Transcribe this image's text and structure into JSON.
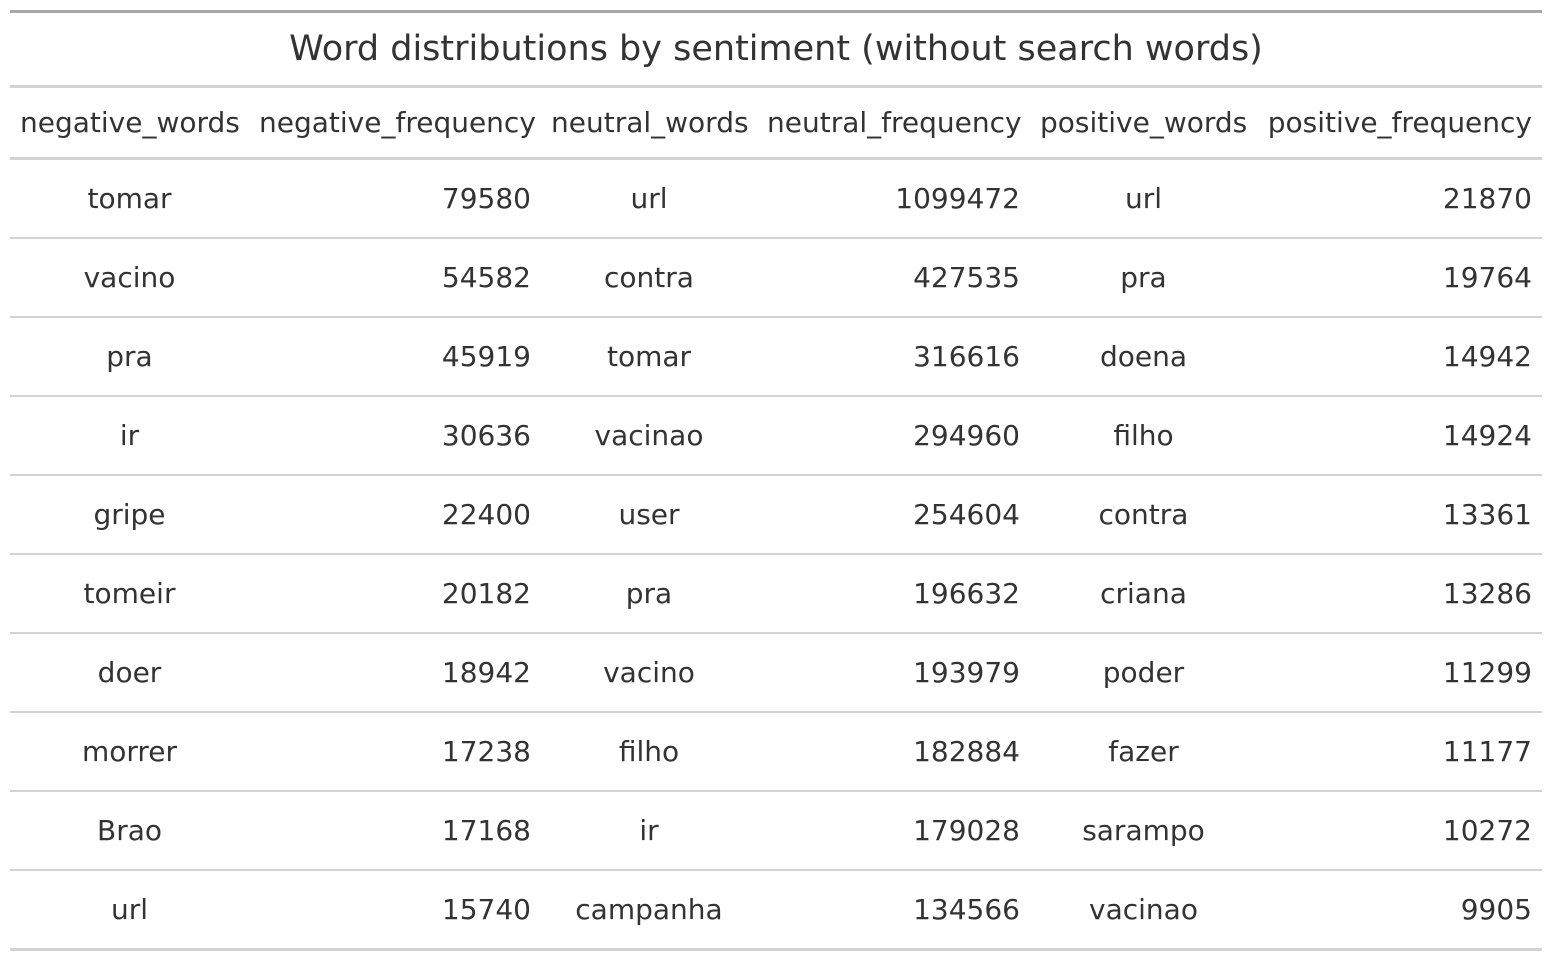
{
  "chart_data": {
    "type": "table",
    "title": "Word distributions by sentiment (without search words)",
    "columns": [
      "negative_words",
      "negative_frequency",
      "neutral_words",
      "neutral_frequency",
      "positive_words",
      "positive_frequency"
    ],
    "rows": [
      [
        "tomar",
        "79580",
        "url",
        "1099472",
        "url",
        "21870"
      ],
      [
        "vacino",
        "54582",
        "contra",
        "427535",
        "pra",
        "19764"
      ],
      [
        "pra",
        "45919",
        "tomar",
        "316616",
        "doena",
        "14942"
      ],
      [
        "ir",
        "30636",
        "vacinao",
        "294960",
        "filho",
        "14924"
      ],
      [
        "gripe",
        "22400",
        "user",
        "254604",
        "contra",
        "13361"
      ],
      [
        "tomeir",
        "20182",
        "pra",
        "196632",
        "criana",
        "13286"
      ],
      [
        "doer",
        "18942",
        "vacino",
        "193979",
        "poder",
        "11299"
      ],
      [
        "morrer",
        "17238",
        "filho",
        "182884",
        "fazer",
        "11177"
      ],
      [
        "Brao",
        "17168",
        "ir",
        "179028",
        "sarampo",
        "10272"
      ],
      [
        "url",
        "15740",
        "campanha",
        "134566",
        "vacinao",
        "9905"
      ]
    ]
  }
}
